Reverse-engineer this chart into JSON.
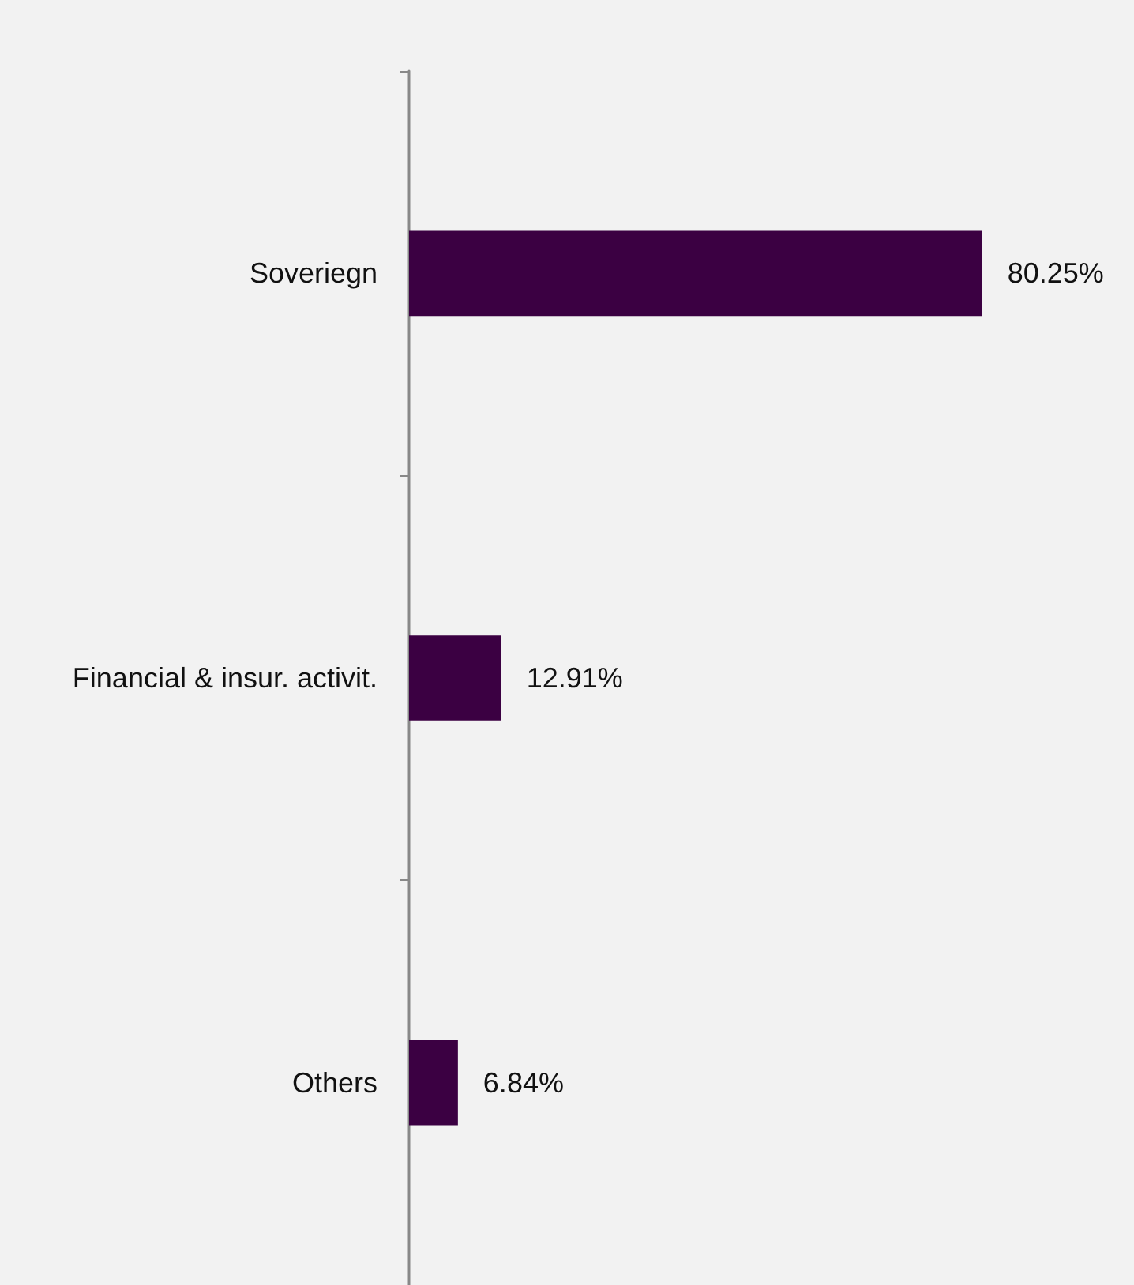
{
  "chart_data": {
    "type": "bar",
    "orientation": "horizontal",
    "categories": [
      "Soveriegn",
      "Financial & insur. activit.",
      "Others"
    ],
    "values": [
      80.25,
      12.91,
      6.84
    ],
    "value_labels": [
      "80.25%",
      "12.91%",
      "6.84%"
    ],
    "color": "#3b0042"
  }
}
